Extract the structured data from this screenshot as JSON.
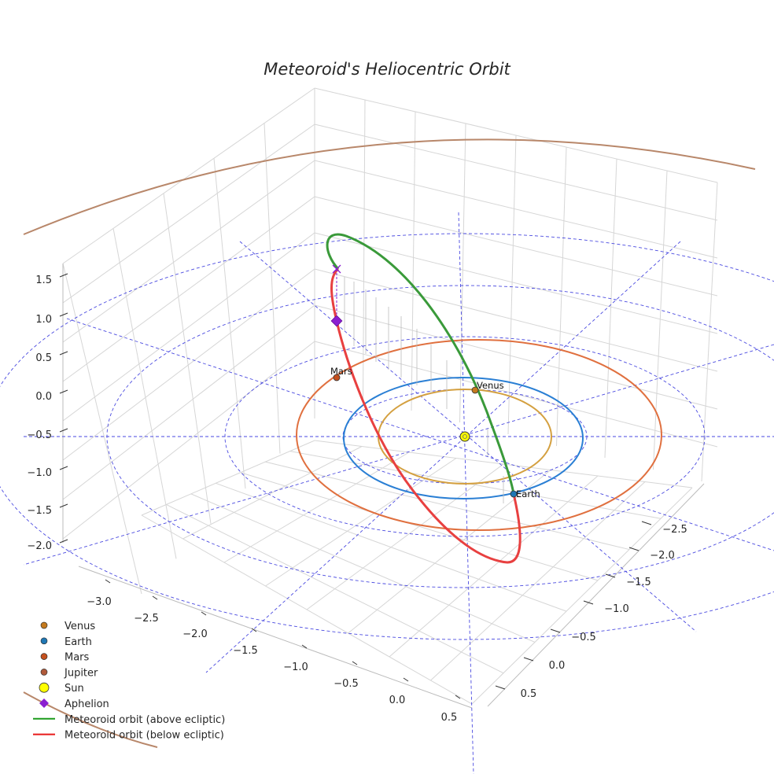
{
  "chart_data": {
    "type": "line3d",
    "title": "Meteoroid's Heliocentric Orbit",
    "axes": {
      "x_ticks": [
        "−3.0",
        "−2.5",
        "−2.0",
        "−1.5",
        "−1.0",
        "−0.5",
        "0.0",
        "0.5"
      ],
      "y_ticks": [
        "−2.5",
        "−2.0",
        "−1.5",
        "−1.0",
        "−0.5",
        "0.0",
        "0.5"
      ],
      "z_ticks": [
        "1.5",
        "1.0",
        "0.5",
        "0.0",
        "−0.5",
        "−1.0",
        "−1.5",
        "−2.0"
      ],
      "grid": true
    },
    "bodies": [
      {
        "name": "Venus",
        "label": "Venus",
        "orbit_radius_au": 0.72,
        "color": "#d4a040"
      },
      {
        "name": "Earth",
        "label": "Earth",
        "orbit_radius_au": 1.0,
        "color": "#2a7fd4"
      },
      {
        "name": "Mars",
        "label": "Mars",
        "orbit_radius_au": 1.52,
        "color": "#e0703f"
      },
      {
        "name": "Jupiter",
        "label": "",
        "orbit_radius_au": 5.2,
        "color": "#b8876a"
      }
    ],
    "meteoroid_orbit": {
      "above_ecliptic_color": "#3a9a3a",
      "below_ecliptic_color": "#e84040",
      "aphelion_color": "#8a1fd0"
    },
    "ecliptic_grid_color": "#4a4ae0",
    "legend": [
      {
        "label": "Venus",
        "marker": "dot",
        "color": "#c47a1e"
      },
      {
        "label": "Earth",
        "marker": "dot",
        "color": "#1f77b4"
      },
      {
        "label": "Mars",
        "marker": "dot",
        "color": "#c4501e"
      },
      {
        "label": "Jupiter",
        "marker": "dot",
        "color": "#b05a3a"
      },
      {
        "label": "Sun",
        "marker": "sun",
        "color": "#ffff00"
      },
      {
        "label": "Aphelion",
        "marker": "diamond",
        "color": "#8a1fd0"
      },
      {
        "label": "Meteoroid orbit (above ecliptic)",
        "marker": "line",
        "color": "#1a9a1a"
      },
      {
        "label": "Meteoroid orbit (below ecliptic)",
        "marker": "line",
        "color": "#e81a1a"
      }
    ]
  }
}
